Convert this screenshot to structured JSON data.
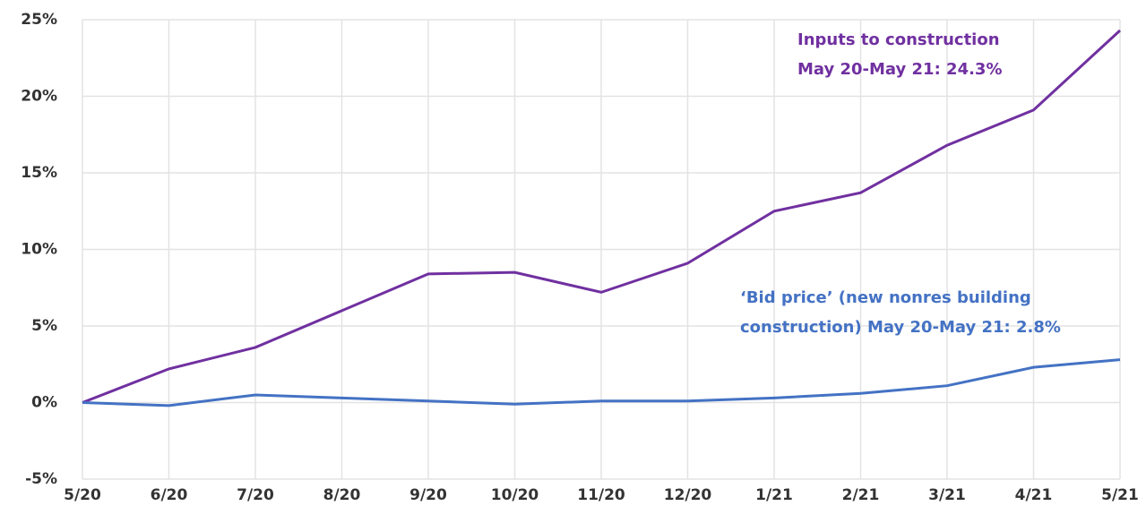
{
  "chart_data": {
    "type": "line",
    "categories": [
      "5/20",
      "6/20",
      "7/20",
      "8/20",
      "9/20",
      "10/20",
      "11/20",
      "12/20",
      "1/21",
      "2/21",
      "3/21",
      "4/21",
      "5/21"
    ],
    "series": [
      {
        "color": "#7030a0",
        "values": [
          0,
          2.2,
          3.6,
          6.0,
          8.4,
          8.5,
          7.2,
          9.1,
          12.5,
          13.7,
          16.8,
          19.1,
          24.3
        ]
      },
      {
        "color": "#4472c4",
        "values": [
          0,
          -0.2,
          0.5,
          0.3,
          0.1,
          -0.1,
          0.1,
          0.1,
          0.3,
          0.6,
          1.1,
          2.3,
          2.8
        ]
      }
    ],
    "annotations": [
      {
        "lines": [
          "Inputs to construction",
          "May 20-May 21: 24.3%"
        ],
        "color": "#7030a0"
      },
      {
        "lines": [
          "‘Bid price’ (new nonres building",
          "construction) May 20-May 21: 2.8%"
        ],
        "color": "#4472c4"
      }
    ],
    "ylim": [
      -5,
      25
    ],
    "yticks": [
      {
        "value": -5,
        "label": "-5%"
      },
      {
        "value": 0,
        "label": "0%"
      },
      {
        "value": 5,
        "label": "5%"
      },
      {
        "value": 10,
        "label": "10%"
      },
      {
        "value": 15,
        "label": "15%"
      },
      {
        "value": 20,
        "label": "20%"
      },
      {
        "value": 25,
        "label": "25%"
      }
    ],
    "grid": true
  }
}
